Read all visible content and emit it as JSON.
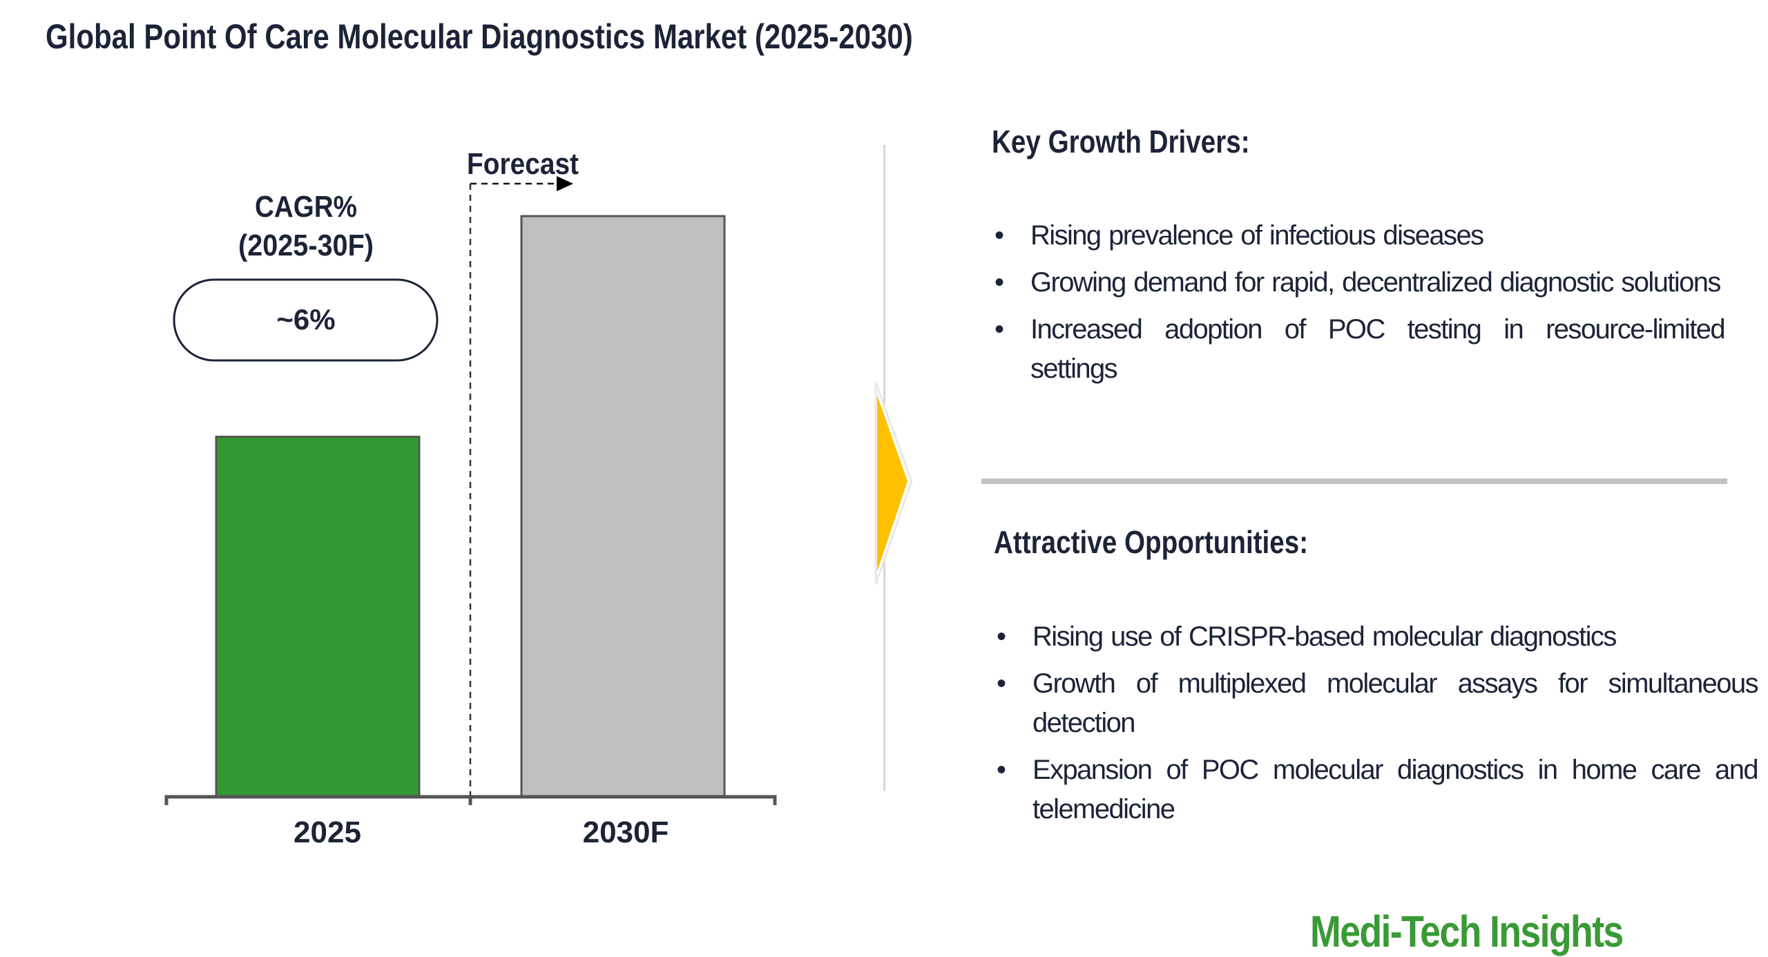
{
  "title": "Global Point Of Care Molecular Diagnostics Market (2025-2030)",
  "chart_data": {
    "type": "bar",
    "categories": [
      "2025",
      "2030F"
    ],
    "values": [
      62,
      100
    ],
    "value_units": "relative (2030F = 100); no axis values printed",
    "ylim": [
      0,
      100
    ],
    "bar_colors": [
      "#339933",
      "#c0c0c0"
    ],
    "grid": false,
    "forecast_label": "Forecast",
    "cagr_label": "CAGR%",
    "cagr_period": "(2025-30F)",
    "cagr_value": "~6%"
  },
  "drivers": {
    "heading": "Key Growth Drivers:",
    "items": [
      "Rising prevalence of infectious diseases",
      "Growing demand for rapid, decentralized diagnostic solutions",
      "Increased adoption of POC testing in resource-limited settings"
    ]
  },
  "opportunities": {
    "heading": "Attractive Opportunities:",
    "items": [
      "Rising use of CRISPR-based molecular diagnostics",
      "Growth of multiplexed molecular assays for simultaneous detection",
      "Expansion of POC molecular diagnostics in home care and telemedicine"
    ]
  },
  "bullet": "•",
  "logo": "Medi-Tech Insights",
  "colors": {
    "text": "#1b2437",
    "accent_yellow": "#ffc000",
    "logo_green": "#3a9a36"
  }
}
